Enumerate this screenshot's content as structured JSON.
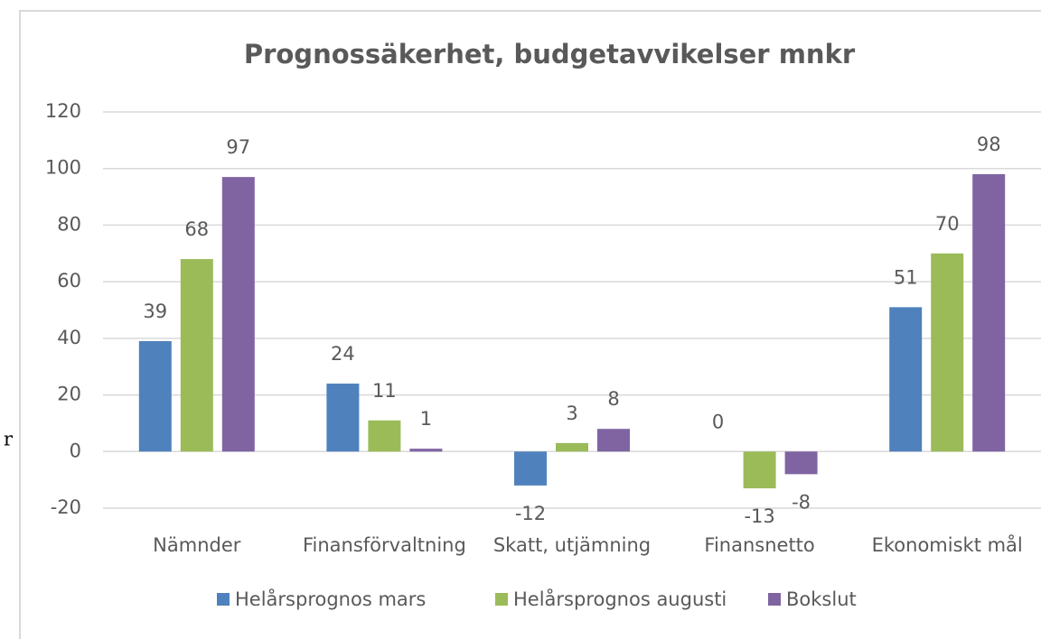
{
  "chart_data": {
    "type": "bar",
    "title": "Prognossäkerhet, budgetavvikelser mnkr",
    "fragment": "r",
    "categories": [
      "Nämnder",
      "Finansförvaltning",
      "Skatt, utjämning",
      "Finansnetto",
      "Ekonomiskt mål"
    ],
    "series": [
      {
        "name": "Helårsprognos mars",
        "color": "#4f81bd",
        "values": [
          39,
          24,
          -12,
          0,
          51
        ]
      },
      {
        "name": "Helårsprognos augusti",
        "color": "#9bbb59",
        "values": [
          68,
          11,
          3,
          -13,
          70
        ]
      },
      {
        "name": "Bokslut",
        "color": "#8064a2",
        "values": [
          97,
          1,
          8,
          -8,
          98
        ]
      }
    ],
    "ylim": [
      -20,
      120
    ],
    "yticks": [
      -20,
      0,
      20,
      40,
      60,
      80,
      100,
      120
    ],
    "grid": true,
    "legend": "bottom"
  }
}
